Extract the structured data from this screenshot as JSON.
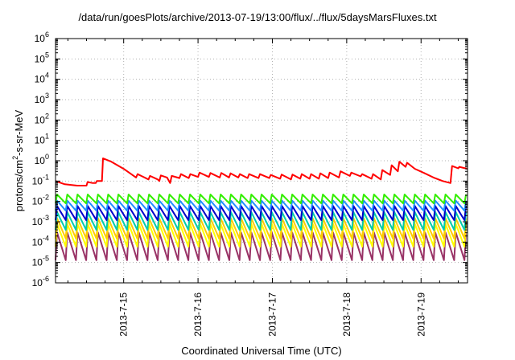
{
  "chart_data": {
    "type": "line",
    "title": "/data/run/goesPlots/archive/2013-07-19/13:00/flux/../flux/5daysMarsFluxes.txt",
    "xlabel": "Coordinated Universal Time (UTC)",
    "ylabel_parts": [
      "protons/cm",
      "2",
      "-s-sr-MeV"
    ],
    "y_scale": "log",
    "ylim": [
      1e-06,
      1000000.0
    ],
    "xlim": [
      "2013-07-14 02:00",
      "2013-07-19 15:00"
    ],
    "x_tick_labels": [
      "2013-7-15",
      "2013-7-16",
      "2013-7-17",
      "2013-7-18",
      "2013-7-19"
    ],
    "y_tick_labels": [
      {
        "base": "10",
        "exp": "-6"
      },
      {
        "base": "10",
        "exp": "-5"
      },
      {
        "base": "10",
        "exp": "-4"
      },
      {
        "base": "10",
        "exp": "-3"
      },
      {
        "base": "10",
        "exp": "-2"
      },
      {
        "base": "10",
        "exp": "-1"
      },
      {
        "base": "10",
        "exp": "0"
      },
      {
        "base": "10",
        "exp": "1"
      },
      {
        "base": "10",
        "exp": "2"
      },
      {
        "base": "10",
        "exp": "3"
      },
      {
        "base": "10",
        "exp": "4"
      },
      {
        "base": "10",
        "exp": "5"
      },
      {
        "base": "10",
        "exp": "6"
      }
    ],
    "grid": true,
    "series": [
      {
        "color": "#ff0000",
        "type": "points",
        "points": [
          [
            "2013-07-14 02:00",
            0.1
          ],
          [
            "2013-07-14 05:00",
            0.07
          ],
          [
            "2013-07-14 09:00",
            0.06
          ],
          [
            "2013-07-14 12:00",
            0.06
          ],
          [
            "2013-07-14 12:20",
            0.09
          ],
          [
            "2013-07-14 14:00",
            0.08
          ],
          [
            "2013-07-14 15:00",
            0.08
          ],
          [
            "2013-07-14 15:20",
            0.1
          ],
          [
            "2013-07-14 17:00",
            0.1
          ],
          [
            "2013-07-14 17:20",
            1.3
          ],
          [
            "2013-07-14 20:00",
            0.9
          ],
          [
            "2013-07-15 00:00",
            0.4
          ],
          [
            "2013-07-15 04:00",
            0.15
          ],
          [
            "2013-07-15 04:30",
            0.22
          ],
          [
            "2013-07-15 06:00",
            0.17
          ],
          [
            "2013-07-15 08:00",
            0.12
          ],
          [
            "2013-07-15 08:30",
            0.18
          ],
          [
            "2013-07-15 11:00",
            0.12
          ],
          [
            "2013-07-15 11:30",
            0.1
          ],
          [
            "2013-07-15 12:00",
            0.19
          ],
          [
            "2013-07-15 14:00",
            0.15
          ],
          [
            "2013-07-15 15:00",
            0.08
          ],
          [
            "2013-07-15 15:30",
            0.18
          ],
          [
            "2013-07-15 18:00",
            0.14
          ],
          [
            "2013-07-15 18:30",
            0.22
          ],
          [
            "2013-07-15 21:00",
            0.14
          ],
          [
            "2013-07-15 21:30",
            0.22
          ],
          [
            "2013-07-16 00:00",
            0.16
          ],
          [
            "2013-07-16 00:30",
            0.26
          ],
          [
            "2013-07-16 03:30",
            0.16
          ],
          [
            "2013-07-16 04:00",
            0.25
          ],
          [
            "2013-07-16 07:00",
            0.15
          ],
          [
            "2013-07-16 07:30",
            0.25
          ],
          [
            "2013-07-16 10:00",
            0.15
          ],
          [
            "2013-07-16 10:30",
            0.24
          ],
          [
            "2013-07-16 13:00",
            0.15
          ],
          [
            "2013-07-16 13:30",
            0.22
          ],
          [
            "2013-07-16 16:00",
            0.14
          ],
          [
            "2013-07-16 16:30",
            0.22
          ],
          [
            "2013-07-16 19:30",
            0.14
          ],
          [
            "2013-07-16 20:00",
            0.22
          ],
          [
            "2013-07-16 23:00",
            0.14
          ],
          [
            "2013-07-16 23:30",
            0.2
          ],
          [
            "2013-07-17 02:30",
            0.13
          ],
          [
            "2013-07-17 03:00",
            0.21
          ],
          [
            "2013-07-17 06:00",
            0.12
          ],
          [
            "2013-07-17 06:30",
            0.21
          ],
          [
            "2013-07-17 09:00",
            0.13
          ],
          [
            "2013-07-17 09:30",
            0.22
          ],
          [
            "2013-07-17 12:00",
            0.13
          ],
          [
            "2013-07-17 12:30",
            0.22
          ],
          [
            "2013-07-17 15:00",
            0.13
          ],
          [
            "2013-07-17 15:30",
            0.24
          ],
          [
            "2013-07-17 18:00",
            0.14
          ],
          [
            "2013-07-17 18:30",
            0.26
          ],
          [
            "2013-07-17 21:30",
            0.15
          ],
          [
            "2013-07-17 22:00",
            0.3
          ],
          [
            "2013-07-18 01:00",
            0.18
          ],
          [
            "2013-07-18 01:30",
            0.26
          ],
          [
            "2013-07-18 04:30",
            0.17
          ],
          [
            "2013-07-18 05:00",
            0.22
          ],
          [
            "2013-07-18 08:00",
            0.13
          ],
          [
            "2013-07-18 08:30",
            0.22
          ],
          [
            "2013-07-18 11:00",
            0.12
          ],
          [
            "2013-07-18 11:30",
            0.35
          ],
          [
            "2013-07-18 14:00",
            0.2
          ],
          [
            "2013-07-18 14:30",
            0.6
          ],
          [
            "2013-07-18 16:30",
            0.3
          ],
          [
            "2013-07-18 17:00",
            0.9
          ],
          [
            "2013-07-18 19:00",
            0.5
          ],
          [
            "2013-07-18 19:30",
            0.8
          ],
          [
            "2013-07-18 22:00",
            0.4
          ],
          [
            "2013-07-19 01:00",
            0.25
          ],
          [
            "2013-07-19 04:00",
            0.15
          ],
          [
            "2013-07-19 07:00",
            0.1
          ],
          [
            "2013-07-19 09:30",
            0.08
          ],
          [
            "2013-07-19 10:00",
            0.55
          ],
          [
            "2013-07-19 12:00",
            0.42
          ],
          [
            "2013-07-19 12:20",
            0.5
          ],
          [
            "2013-07-19 15:00",
            0.4
          ]
        ]
      },
      {
        "color": "#33ee00",
        "type": "sawtooth",
        "start": "2013-07-14 02:00",
        "end": "2013-07-19 15:00",
        "period_hours": 3.3,
        "low": 0.008,
        "high": 0.022
      },
      {
        "color": "#1e90ff",
        "type": "sawtooth",
        "start": "2013-07-14 02:00",
        "end": "2013-07-19 15:00",
        "period_hours": 3.3,
        "low": 0.0035,
        "high": 0.011
      },
      {
        "color": "#0000cc",
        "type": "sawtooth",
        "start": "2013-07-14 02:00",
        "end": "2013-07-19 15:00",
        "period_hours": 3.3,
        "low": 0.0012,
        "high": 0.006
      },
      {
        "color": "#00ccaa",
        "type": "sawtooth",
        "start": "2013-07-14 02:00",
        "end": "2013-07-19 15:00",
        "period_hours": 3.3,
        "low": 0.0004,
        "high": 0.003
      },
      {
        "color": "#ffcc00",
        "type": "sawtooth",
        "start": "2013-07-14 02:00",
        "end": "2013-07-19 15:00",
        "period_hours": 3.3,
        "low": 0.00015,
        "high": 0.0015
      },
      {
        "color": "#ffff00",
        "type": "sawtooth",
        "start": "2013-07-14 02:00",
        "end": "2013-07-19 15:00",
        "period_hours": 3.3,
        "low": 6e-05,
        "high": 0.0008
      },
      {
        "color": "#993366",
        "type": "sawtooth",
        "start": "2013-07-14 02:00",
        "end": "2013-07-19 15:00",
        "period_hours": 3.3,
        "low": 1.3e-05,
        "high": 0.0003
      }
    ]
  }
}
